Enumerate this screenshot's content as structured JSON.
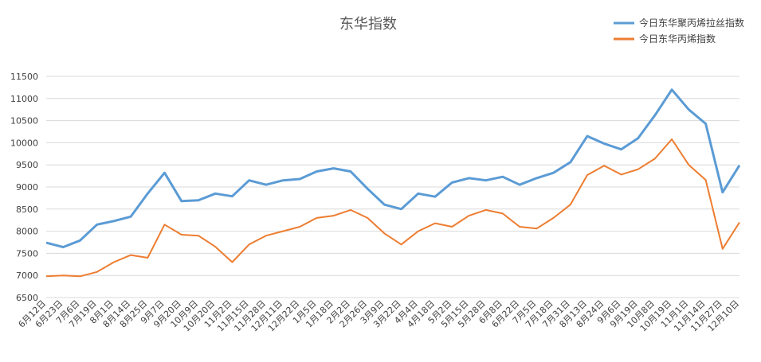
{
  "chart_data": {
    "type": "line",
    "title": "东华指数",
    "xlabel": "",
    "ylabel": "",
    "ylim": [
      6500,
      11500
    ],
    "yticks": [
      6500,
      7000,
      7500,
      8000,
      8500,
      9000,
      9500,
      10000,
      10500,
      11000,
      11500
    ],
    "grid": true,
    "legend_position": "top-right",
    "x_tick_labels": [
      "6月12日",
      "6月23日",
      "7月6日",
      "7月19日",
      "8月1日",
      "8月14日",
      "8月25日",
      "9月7日",
      "9月20日",
      "10月9日",
      "10月20日",
      "11月2日",
      "11月15日",
      "11月28日",
      "12月11日",
      "12月22日",
      "1月5日",
      "1月18日",
      "2月2日",
      "2月26日",
      "3月9日",
      "3月22日",
      "4月4日",
      "4月18日",
      "5月2日",
      "5月15日",
      "5月28日",
      "6月8日",
      "6月22日",
      "7月5日",
      "7月18日",
      "7月31日",
      "8月13日",
      "8月24日",
      "9月6日",
      "9月19日",
      "10月8日",
      "10月19日",
      "11月1日",
      "11月14日",
      "11月27日",
      "12月10日"
    ],
    "series": [
      {
        "name": "今日东华聚丙烯拉丝指数",
        "color": "#5B9BD5",
        "values": [
          7740,
          7640,
          7790,
          8150,
          8230,
          8330,
          8850,
          9320,
          8680,
          8700,
          8850,
          8790,
          9150,
          9050,
          9150,
          9180,
          9350,
          9420,
          9350,
          8960,
          8600,
          8500,
          8850,
          8780,
          9100,
          9200,
          9150,
          9230,
          9050,
          9200,
          9320,
          9560,
          10150,
          9980,
          9850,
          10100,
          10620,
          11200,
          10750,
          10430,
          8880,
          9490
        ]
      },
      {
        "name": "今日东华丙烯指数",
        "color": "#ED7D31",
        "values": [
          6980,
          7000,
          6980,
          7080,
          7300,
          7460,
          7400,
          8150,
          7920,
          7900,
          7650,
          7300,
          7700,
          7900,
          8000,
          8100,
          8300,
          8350,
          8480,
          8300,
          7950,
          7700,
          8000,
          8180,
          8100,
          8350,
          8480,
          8400,
          8100,
          8060,
          8300,
          8600,
          9270,
          9480,
          9280,
          9400,
          9640,
          10080,
          9500,
          9160,
          7600,
          8200
        ]
      }
    ]
  }
}
